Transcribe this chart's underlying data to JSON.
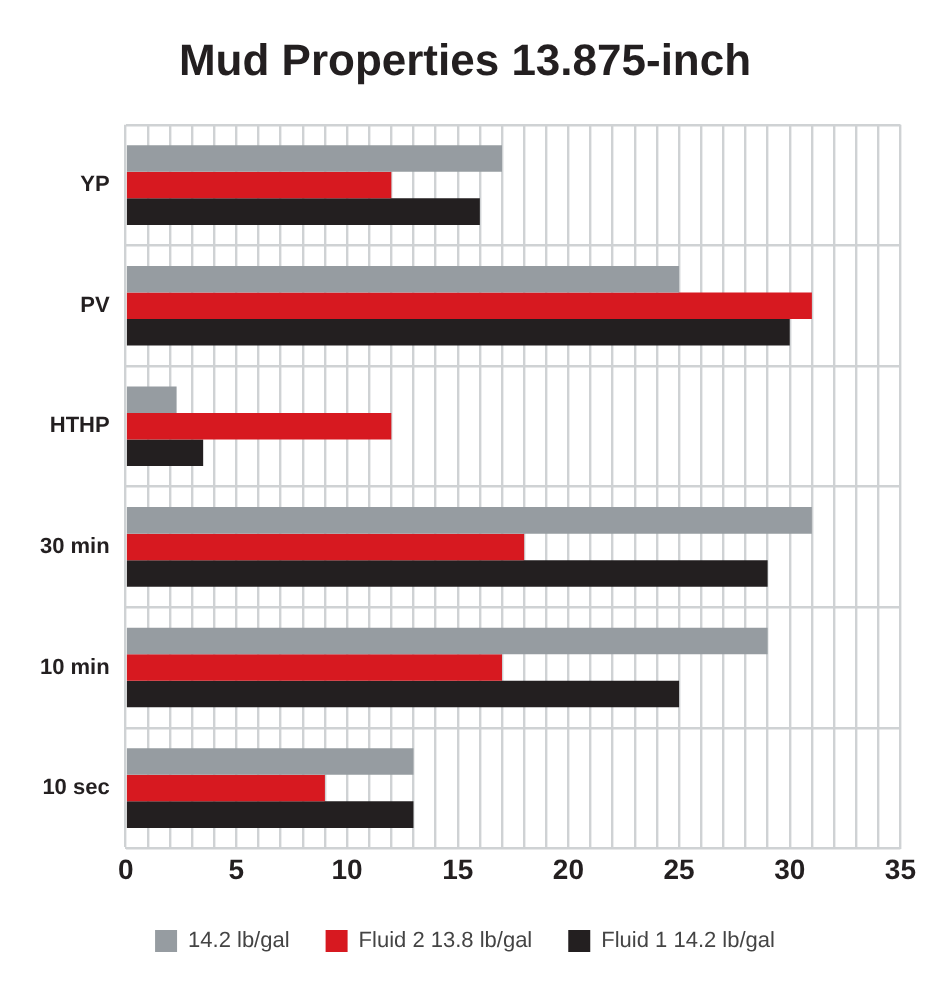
{
  "chart_data": {
    "type": "bar",
    "orientation": "horizontal",
    "title": "Mud Properties 13.875-inch",
    "categories": [
      "YP",
      "PV",
      "HTHP",
      "30 min",
      "10 min",
      "10 sec"
    ],
    "series": [
      {
        "name": "14.2 lb/gal",
        "color": "#969ca1",
        "values": [
          17,
          25,
          2.3,
          31,
          29,
          13
        ]
      },
      {
        "name": "Fluid 2 13.8 lb/gal",
        "color": "#d71920",
        "values": [
          12,
          31,
          12,
          18,
          17,
          9
        ]
      },
      {
        "name": "Fluid 1 14.2 lb/gal",
        "color": "#231f20",
        "values": [
          16,
          30,
          3.5,
          29,
          25,
          13
        ]
      }
    ],
    "xlim": [
      0,
      35
    ],
    "xticks": [
      0,
      {
        "value": 1,
        "label": null
      },
      {
        "value": 2,
        "label": null
      },
      {
        "value": 3,
        "label": null
      },
      {
        "value": 4,
        "label": null
      },
      5,
      {
        "value": 6,
        "label": null
      },
      {
        "value": 7,
        "label": null
      },
      {
        "value": 8,
        "label": null
      },
      {
        "value": 9,
        "label": null
      },
      10,
      {
        "value": 11,
        "label": null
      },
      {
        "value": 12,
        "label": null
      },
      {
        "value": 13,
        "label": null
      },
      {
        "value": 14,
        "label": null
      },
      15,
      {
        "value": 16,
        "label": null
      },
      {
        "value": 17,
        "label": null
      },
      {
        "value": 18,
        "label": null
      },
      {
        "value": 19,
        "label": null
      },
      20,
      {
        "value": 21,
        "label": null
      },
      {
        "value": 22,
        "label": null
      },
      {
        "value": 23,
        "label": null
      },
      {
        "value": 24,
        "label": null
      },
      25,
      {
        "value": 26,
        "label": null
      },
      {
        "value": 27,
        "label": null
      },
      {
        "value": 28,
        "label": null
      },
      {
        "value": 29,
        "label": null
      },
      30,
      {
        "value": 31,
        "label": null
      },
      {
        "value": 32,
        "label": null
      },
      {
        "value": 33,
        "label": null
      },
      {
        "value": 34,
        "label": null
      },
      35
    ],
    "grid": true,
    "legend": "bottom"
  }
}
